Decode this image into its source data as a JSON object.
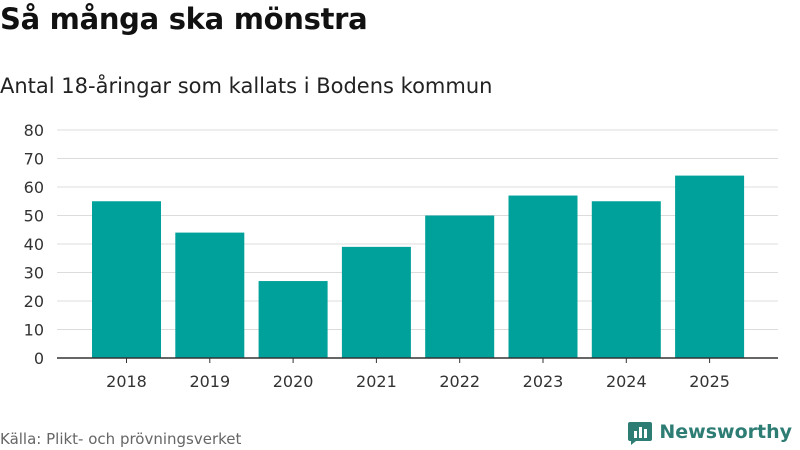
{
  "header": {
    "title": "Så många ska mönstra",
    "subtitle": "Antal 18-åringar som kallats i Bodens kommun"
  },
  "footer": {
    "source": "Källa: Plikt- och prövningsverket",
    "brand": "Newsworthy",
    "brand_icon": "bar-chart-logo-icon"
  },
  "colors": {
    "bar": "#00a19a",
    "grid": "#dcdcdc",
    "axis": "#333333",
    "brand": "#2e7d75"
  },
  "chart_data": {
    "type": "bar",
    "categories": [
      "2018",
      "2019",
      "2020",
      "2021",
      "2022",
      "2023",
      "2024",
      "2025"
    ],
    "values": [
      55,
      44,
      27,
      39,
      50,
      57,
      55,
      64
    ],
    "ylim": [
      0,
      80
    ],
    "yticks": [
      0,
      10,
      20,
      30,
      40,
      50,
      60,
      70,
      80
    ],
    "grid": true,
    "xlabel": "",
    "ylabel": ""
  }
}
